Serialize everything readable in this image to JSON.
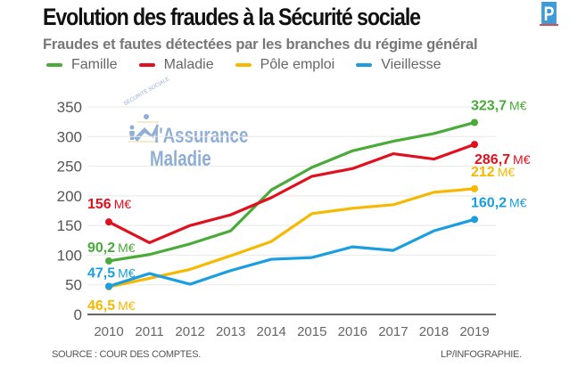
{
  "header": {
    "title": "Evolution des fraudes à la Sécurité sociale",
    "subtitle": "Fraudes et fautes détectées par les branches du régime général",
    "logo_letter": "P"
  },
  "watermark": {
    "arc_text": "SÉCURITÉ SOCIALE",
    "line1": "l'Assurance",
    "line2": "Maladie"
  },
  "footer": {
    "source": "SOURCE : COUR DES COMPTES.",
    "credit": "LP/INFOGRAPHIE."
  },
  "chart_data": {
    "type": "line",
    "title": "Evolution des fraudes à la Sécurité sociale",
    "subtitle": "Fraudes et fautes détectées par les branches du régime général",
    "xlabel": "",
    "ylabel": "",
    "unit": "M€",
    "x": [
      "2010",
      "2011",
      "2012",
      "2013",
      "2014",
      "2015",
      "2016",
      "2017",
      "2018",
      "2019"
    ],
    "ylim": [
      0,
      350
    ],
    "yticks": [
      "0",
      "50",
      "100",
      "150",
      "200",
      "250",
      "300",
      "350"
    ],
    "ytick_values": [
      0,
      50,
      100,
      150,
      200,
      250,
      300,
      350
    ],
    "grid": true,
    "legend_position": "top",
    "series": [
      {
        "name": "Famille",
        "color": "#4aaa3a",
        "values": [
          90.2,
          101,
          119,
          141,
          210,
          248,
          276,
          292,
          305,
          323.7
        ],
        "start_label": "90,2",
        "end_label": "323,7"
      },
      {
        "name": "Maladie",
        "color": "#e0101e",
        "values": [
          156,
          121,
          150,
          168,
          197,
          233,
          246,
          271,
          262,
          286.7
        ],
        "start_label": "156",
        "end_label": "286,7"
      },
      {
        "name": "Pôle emploi",
        "color": "#f6b800",
        "values": [
          46.5,
          61,
          76,
          99,
          123,
          170,
          179,
          185,
          206,
          212
        ],
        "start_label": "46,5",
        "end_label": "212"
      },
      {
        "name": "Vieillesse",
        "color": "#1a9ee0",
        "values": [
          47.5,
          69,
          51,
          74,
          93,
          96,
          114,
          108,
          141,
          160.2
        ],
        "start_label": "47,5",
        "end_label": "160,2"
      }
    ]
  }
}
